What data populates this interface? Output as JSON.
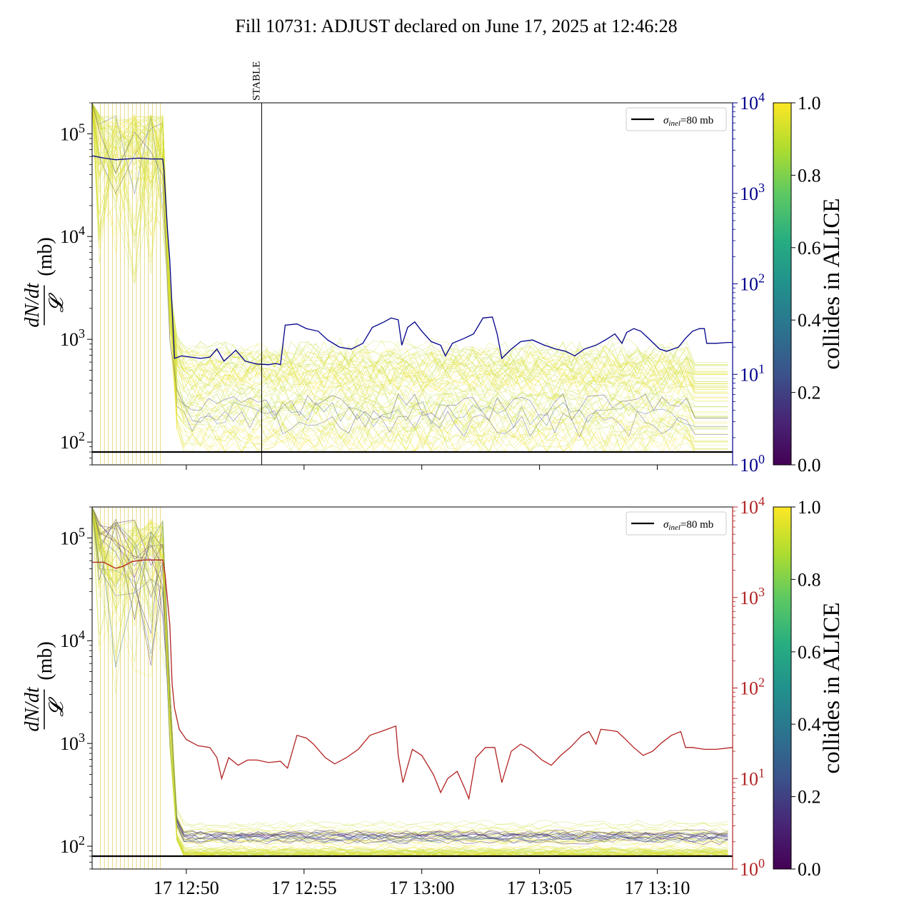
{
  "title": "Fill 10731: ADJUST declared on June 17, 2025 at 12:46:28",
  "colors": {
    "top_right_axis": "#00008b",
    "bottom_right_axis": "#b22222",
    "reference_line": "#000000",
    "colormap": [
      "#440154",
      "#3b528b",
      "#21918c",
      "#5ec962",
      "#fde725"
    ]
  },
  "chart_data": [
    {
      "type": "line",
      "panel": "top",
      "ylabel_main": "dN/dt",
      "ylabel_den": "𝓛",
      "ylabel_unit": "(mb)",
      "ylim": [
        60,
        200000
      ],
      "yscale": "log",
      "yticks": [
        {
          "value": 100,
          "base": "10",
          "exp": "2"
        },
        {
          "value": 1000,
          "base": "10",
          "exp": "3"
        },
        {
          "value": 10000,
          "base": "10",
          "exp": "4"
        },
        {
          "value": 100000,
          "base": "10",
          "exp": "5"
        }
      ],
      "xlim_min": [
        46.0,
        73.2
      ],
      "xtick_minutes": [
        50,
        55,
        60,
        65,
        70
      ],
      "xtick_labels_visible": false,
      "reference_line": {
        "value": 80,
        "legend": "σinel=80 mb",
        "legend_sym": "σ",
        "legend_sub": "inel",
        "legend_rest": "=80 mb"
      },
      "annotation": {
        "text": "STABLE",
        "x_min": 53.2
      },
      "right_axis": {
        "ylim": [
          1,
          10000
        ],
        "yscale": "log",
        "yticks": [
          {
            "value": 1,
            "base": "10",
            "exp": "0"
          },
          {
            "value": 10,
            "base": "10",
            "exp": "1"
          },
          {
            "value": 100,
            "base": "10",
            "exp": "2"
          },
          {
            "value": 1000,
            "base": "10",
            "exp": "3"
          },
          {
            "value": 10000,
            "base": "10",
            "exp": "4"
          }
        ],
        "series": [
          [
            46.0,
            2600
          ],
          [
            46.5,
            2450
          ],
          [
            47.0,
            2350
          ],
          [
            47.5,
            2400
          ],
          [
            48.0,
            2450
          ],
          [
            48.5,
            2400
          ],
          [
            49.0,
            2400
          ],
          [
            49.05,
            1800
          ],
          [
            49.2,
            400
          ],
          [
            49.3,
            180
          ],
          [
            49.5,
            15
          ],
          [
            49.8,
            16
          ],
          [
            50.2,
            15.5
          ],
          [
            50.6,
            15
          ],
          [
            51.0,
            15.5
          ],
          [
            51.3,
            19
          ],
          [
            51.6,
            14
          ],
          [
            51.9,
            16.5
          ],
          [
            52.1,
            18.5
          ],
          [
            52.5,
            14
          ],
          [
            53.0,
            13
          ],
          [
            53.5,
            12.8
          ],
          [
            53.8,
            13.2
          ],
          [
            54.0,
            12.8
          ],
          [
            54.2,
            35
          ],
          [
            54.7,
            36
          ],
          [
            55.1,
            32
          ],
          [
            55.6,
            30
          ],
          [
            56.0,
            24
          ],
          [
            56.5,
            20
          ],
          [
            57.0,
            19
          ],
          [
            57.5,
            22
          ],
          [
            57.9,
            33
          ],
          [
            58.4,
            38
          ],
          [
            58.7,
            42
          ],
          [
            59.0,
            40
          ],
          [
            59.15,
            21
          ],
          [
            59.4,
            33
          ],
          [
            59.7,
            38
          ],
          [
            60.0,
            30
          ],
          [
            60.4,
            23
          ],
          [
            60.8,
            21
          ],
          [
            61.0,
            16
          ],
          [
            61.3,
            22
          ],
          [
            61.8,
            25
          ],
          [
            62.2,
            28
          ],
          [
            62.6,
            42
          ],
          [
            63.0,
            43
          ],
          [
            63.2,
            28
          ],
          [
            63.4,
            15
          ],
          [
            63.8,
            19
          ],
          [
            64.2,
            23
          ],
          [
            64.7,
            24
          ],
          [
            65.2,
            21
          ],
          [
            65.7,
            19
          ],
          [
            66.1,
            18
          ],
          [
            66.5,
            16
          ],
          [
            66.9,
            19
          ],
          [
            67.4,
            21
          ],
          [
            67.8,
            24
          ],
          [
            68.2,
            28
          ],
          [
            68.5,
            22
          ],
          [
            68.7,
            29
          ],
          [
            69.0,
            32
          ],
          [
            69.3,
            30
          ],
          [
            69.7,
            24
          ],
          [
            70.1,
            19
          ],
          [
            70.4,
            18
          ],
          [
            70.9,
            20
          ],
          [
            71.2,
            25
          ],
          [
            71.5,
            30
          ],
          [
            71.8,
            32
          ],
          [
            72.0,
            32
          ],
          [
            72.1,
            22
          ],
          [
            72.5,
            22
          ],
          [
            73.0,
            22.5
          ],
          [
            73.2,
            22.5
          ]
        ]
      },
      "colorbar": {
        "label": "collides in ALICE",
        "ticks": [
          "0.0",
          "0.2",
          "0.4",
          "0.6",
          "0.8",
          "1.0"
        ]
      }
    },
    {
      "type": "line",
      "panel": "bottom",
      "ylabel_main": "dN/dt",
      "ylabel_den": "𝓛",
      "ylabel_unit": "(mb)",
      "ylim": [
        60,
        200000
      ],
      "yscale": "log",
      "yticks": [
        {
          "value": 100,
          "base": "10",
          "exp": "2"
        },
        {
          "value": 1000,
          "base": "10",
          "exp": "3"
        },
        {
          "value": 10000,
          "base": "10",
          "exp": "4"
        },
        {
          "value": 100000,
          "base": "10",
          "exp": "5"
        }
      ],
      "xlim_min": [
        46.0,
        73.2
      ],
      "xtick_minutes": [
        50,
        55,
        60,
        65,
        70
      ],
      "xtick_labels": [
        "17 12:50",
        "17 12:55",
        "17 13:00",
        "17 13:05",
        "17 13:10"
      ],
      "reference_line": {
        "value": 80,
        "legend": "σinel=80 mb",
        "legend_sym": "σ",
        "legend_sub": "inel",
        "legend_rest": "=80 mb"
      },
      "right_axis": {
        "ylim": [
          1,
          10000
        ],
        "yscale": "log",
        "yticks": [
          {
            "value": 1,
            "base": "10",
            "exp": "0"
          },
          {
            "value": 10,
            "base": "10",
            "exp": "1"
          },
          {
            "value": 100,
            "base": "10",
            "exp": "2"
          },
          {
            "value": 1000,
            "base": "10",
            "exp": "3"
          },
          {
            "value": 10000,
            "base": "10",
            "exp": "4"
          }
        ],
        "series": [
          [
            46.0,
            2450
          ],
          [
            46.5,
            2450
          ],
          [
            47.0,
            2100
          ],
          [
            47.3,
            2200
          ],
          [
            47.7,
            2500
          ],
          [
            48.2,
            2600
          ],
          [
            49.0,
            2600
          ],
          [
            49.1,
            1800
          ],
          [
            49.3,
            500
          ],
          [
            49.4,
            110
          ],
          [
            49.5,
            60
          ],
          [
            49.7,
            35
          ],
          [
            50.0,
            27
          ],
          [
            50.5,
            23
          ],
          [
            51.0,
            22
          ],
          [
            51.3,
            17
          ],
          [
            51.5,
            10
          ],
          [
            51.8,
            17
          ],
          [
            52.2,
            14
          ],
          [
            52.6,
            16
          ],
          [
            53.0,
            16
          ],
          [
            53.5,
            15
          ],
          [
            54.0,
            15.5
          ],
          [
            54.3,
            13
          ],
          [
            54.7,
            30
          ],
          [
            55.1,
            28
          ],
          [
            55.4,
            24
          ],
          [
            55.9,
            17
          ],
          [
            56.3,
            14.5
          ],
          [
            56.8,
            17
          ],
          [
            57.3,
            21
          ],
          [
            57.8,
            30
          ],
          [
            58.4,
            34
          ],
          [
            58.9,
            38
          ],
          [
            59.0,
            18
          ],
          [
            59.2,
            9
          ],
          [
            59.6,
            21
          ],
          [
            60.0,
            18
          ],
          [
            60.5,
            11
          ],
          [
            60.8,
            7
          ],
          [
            61.1,
            10
          ],
          [
            61.5,
            12
          ],
          [
            61.8,
            8
          ],
          [
            62.0,
            6
          ],
          [
            62.3,
            17
          ],
          [
            62.7,
            22
          ],
          [
            63.1,
            22
          ],
          [
            63.4,
            9
          ],
          [
            63.8,
            20
          ],
          [
            64.2,
            24
          ],
          [
            64.6,
            21
          ],
          [
            65.1,
            16
          ],
          [
            65.5,
            14
          ],
          [
            65.9,
            18
          ],
          [
            66.3,
            22
          ],
          [
            66.8,
            30
          ],
          [
            67.1,
            33
          ],
          [
            67.4,
            24
          ],
          [
            67.6,
            35
          ],
          [
            68.0,
            34
          ],
          [
            68.3,
            33
          ],
          [
            68.6,
            28
          ],
          [
            69.0,
            22
          ],
          [
            69.4,
            18
          ],
          [
            69.8,
            20
          ],
          [
            70.2,
            25
          ],
          [
            70.6,
            30
          ],
          [
            71.0,
            33
          ],
          [
            71.2,
            22
          ],
          [
            71.5,
            22
          ],
          [
            72.0,
            21
          ],
          [
            72.5,
            21
          ],
          [
            73.2,
            22
          ]
        ]
      },
      "colorbar": {
        "label": "collides in ALICE",
        "ticks": [
          "0.0",
          "0.2",
          "0.4",
          "0.6",
          "0.8",
          "1.0"
        ]
      }
    }
  ]
}
